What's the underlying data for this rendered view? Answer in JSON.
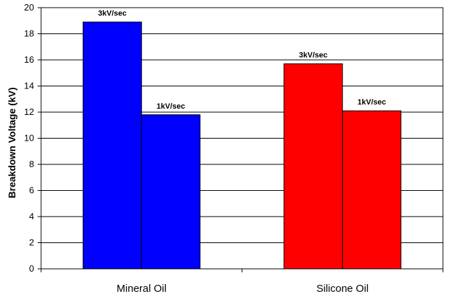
{
  "chart_data": {
    "type": "bar",
    "title": "",
    "xlabel": "",
    "ylabel": "Breakdown Voltage (kV)",
    "ylim": [
      0,
      20
    ],
    "yticks": [
      0,
      2,
      4,
      6,
      8,
      10,
      12,
      14,
      16,
      18,
      20
    ],
    "grid": true,
    "legend": "none",
    "categories": [
      "Mineral Oil",
      "Silicone Oil"
    ],
    "bars": [
      {
        "category": "Mineral Oil",
        "label": "3kV/sec",
        "value": 18.9,
        "color": "#0000ff"
      },
      {
        "category": "Mineral Oil",
        "label": "1kV/sec",
        "value": 11.8,
        "color": "#0000ff"
      },
      {
        "category": "Silicone Oil",
        "label": "3kV/sec",
        "value": 15.7,
        "color": "#ff0000"
      },
      {
        "category": "Silicone Oil",
        "label": "1kV/sec",
        "value": 12.1,
        "color": "#ff0000"
      }
    ],
    "colors": {
      "gridline": "#000000",
      "border": "#000000",
      "background": "#ffffff"
    }
  }
}
